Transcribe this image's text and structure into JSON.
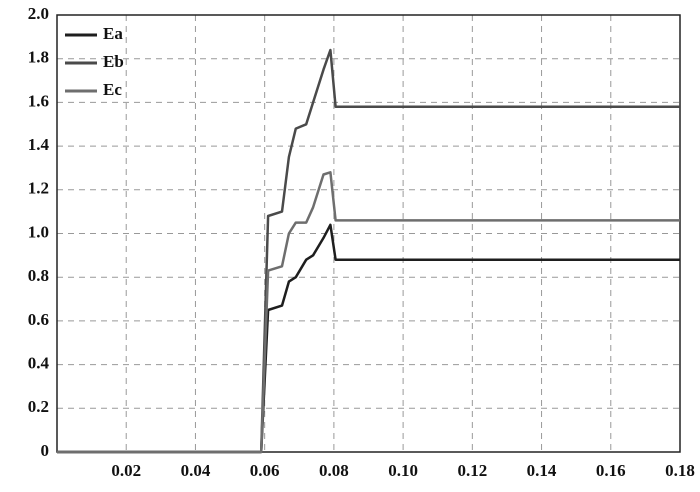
{
  "chart_data": {
    "type": "line",
    "x": [
      0,
      0.059,
      0.061,
      0.065,
      0.067,
      0.069,
      0.072,
      0.074,
      0.077,
      0.079,
      0.0805,
      0.1,
      0.12,
      0.14,
      0.16,
      0.18
    ],
    "series": [
      {
        "name": "Ea",
        "color": "#1e1e1e",
        "values": [
          0,
          0,
          0.65,
          0.67,
          0.78,
          0.8,
          0.88,
          0.9,
          0.98,
          1.04,
          0.88,
          0.88,
          0.88,
          0.88,
          0.88,
          0.88
        ]
      },
      {
        "name": "Eb",
        "color": "#4a4a4a",
        "values": [
          0,
          0,
          1.08,
          1.1,
          1.35,
          1.48,
          1.5,
          1.6,
          1.75,
          1.84,
          1.58,
          1.58,
          1.58,
          1.58,
          1.58,
          1.58
        ]
      },
      {
        "name": "Ec",
        "color": "#6e6e6e",
        "values": [
          0,
          0,
          0.83,
          0.85,
          1.0,
          1.05,
          1.05,
          1.12,
          1.27,
          1.28,
          1.06,
          1.06,
          1.06,
          1.06,
          1.06,
          1.06
        ]
      }
    ],
    "xlim": [
      0,
      0.18
    ],
    "xticks": [
      0.02,
      0.04,
      0.06,
      0.08,
      {
        "value": 0.1,
        "label": "0.10"
      },
      0.12,
      0.14,
      0.16,
      0.18
    ],
    "ylim": [
      0,
      2
    ],
    "yticks": [
      0,
      0.2,
      0.4,
      0.6,
      0.8,
      {
        "value": 1,
        "label": "1.0"
      },
      1.2,
      1.4,
      1.6,
      1.8,
      {
        "value": 2,
        "label": "2.0"
      }
    ],
    "grid": true,
    "legend": "upper-left"
  }
}
